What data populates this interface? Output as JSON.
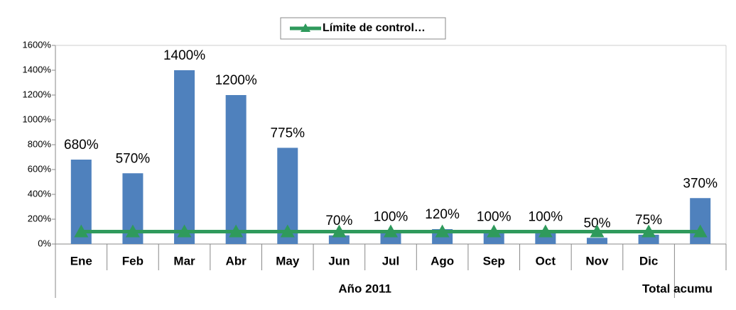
{
  "chart_data": {
    "type": "bar",
    "categories": [
      "Ene",
      "Feb",
      "Mar",
      "Abr",
      "May",
      "Jun",
      "Jul",
      "Ago",
      "Sep",
      "Oct",
      "Nov",
      "Dic",
      null
    ],
    "category_groups": [
      "Año 2011",
      "Total acumu"
    ],
    "series": [
      {
        "type": "bar",
        "color": "#4f81bd",
        "values": [
          680,
          570,
          1400,
          1200,
          775,
          70,
          100,
          120,
          100,
          100,
          50,
          75,
          370
        ],
        "value_labels": [
          "680%",
          "570%",
          "1400%",
          "1200%",
          "775%",
          "70%",
          "100%",
          "120%",
          "100%",
          "100%",
          "50%",
          "75%",
          "370%"
        ]
      },
      {
        "type": "line",
        "name": "Límite de control…",
        "color": "#2f9a5c",
        "values": [
          100,
          100,
          100,
          100,
          100,
          100,
          100,
          100,
          100,
          100,
          100,
          100,
          100
        ]
      }
    ],
    "ylim": [
      0,
      1600
    ],
    "yticks": [
      {
        "value": 0,
        "label": "0%"
      },
      {
        "value": 200,
        "label": "200%"
      },
      {
        "value": 400,
        "label": "400%"
      },
      {
        "value": 600,
        "label": "600%"
      },
      {
        "value": 800,
        "label": "800%"
      },
      {
        "value": 1000,
        "label": "1000%"
      },
      {
        "value": 1200,
        "label": "1200%"
      },
      {
        "value": 1400,
        "label": "1400%"
      },
      {
        "value": 1600,
        "label": "1600%"
      }
    ],
    "legend": "top"
  }
}
